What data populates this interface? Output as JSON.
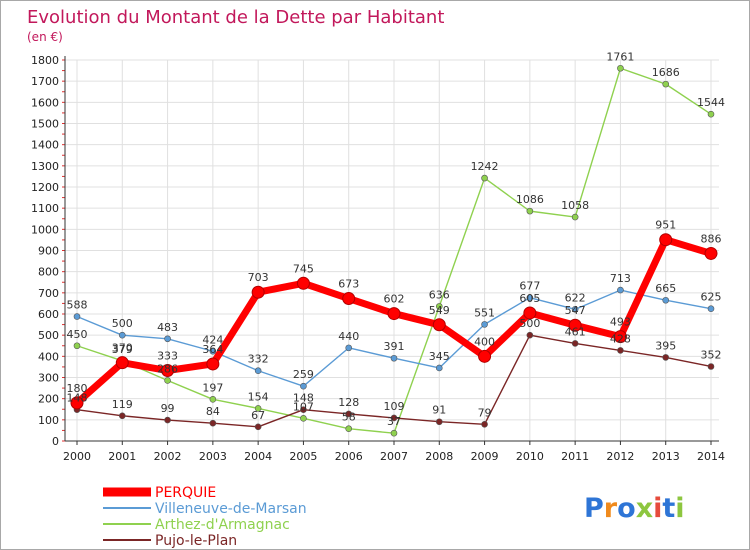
{
  "chart_data": {
    "type": "line",
    "title": "Evolution du Montant de la Dette par Habitant",
    "subtitle": "(en €)",
    "xlabel": "",
    "ylabel": "",
    "x": [
      "2000",
      "2001",
      "2002",
      "2003",
      "2004",
      "2005",
      "2006",
      "2007",
      "2008",
      "2009",
      "2010",
      "2011",
      "2012",
      "2013",
      "2014"
    ],
    "ylim": [
      0,
      1800
    ],
    "yticks": [
      0,
      100,
      200,
      300,
      400,
      500,
      600,
      700,
      800,
      900,
      1000,
      1100,
      1200,
      1300,
      1400,
      1500,
      1600,
      1700,
      1800
    ],
    "grid": true,
    "legend_position": "bottom-left",
    "series": [
      {
        "name": "PERQUIE",
        "color": "#ff0000",
        "values": [
          180,
          370,
          333,
          364,
          703,
          745,
          673,
          602,
          549,
          400,
          605,
          547,
          493,
          951,
          886
        ]
      },
      {
        "name": "Villeneuve-de-Marsan",
        "color": "#5b9bd5",
        "values": [
          588,
          500,
          483,
          424,
          332,
          259,
          440,
          391,
          345,
          551,
          677,
          622,
          713,
          665,
          625
        ]
      },
      {
        "name": "Arthez-d'Armagnac",
        "color": "#8fd14f",
        "values": [
          450,
          379,
          286,
          197,
          154,
          107,
          58,
          37,
          636,
          1242,
          1086,
          1058,
          1761,
          1686,
          1544
        ]
      },
      {
        "name": "Pujo-le-Plan",
        "color": "#7b2626",
        "values": [
          148,
          119,
          99,
          84,
          67,
          148,
          128,
          109,
          91,
          79,
          500,
          461,
          428,
          395,
          352
        ]
      }
    ]
  },
  "logo": {
    "text": "Proxiti"
  },
  "colors": {
    "title": "#c2185b",
    "grid": "#e0e0e0",
    "axis": "#333333"
  }
}
